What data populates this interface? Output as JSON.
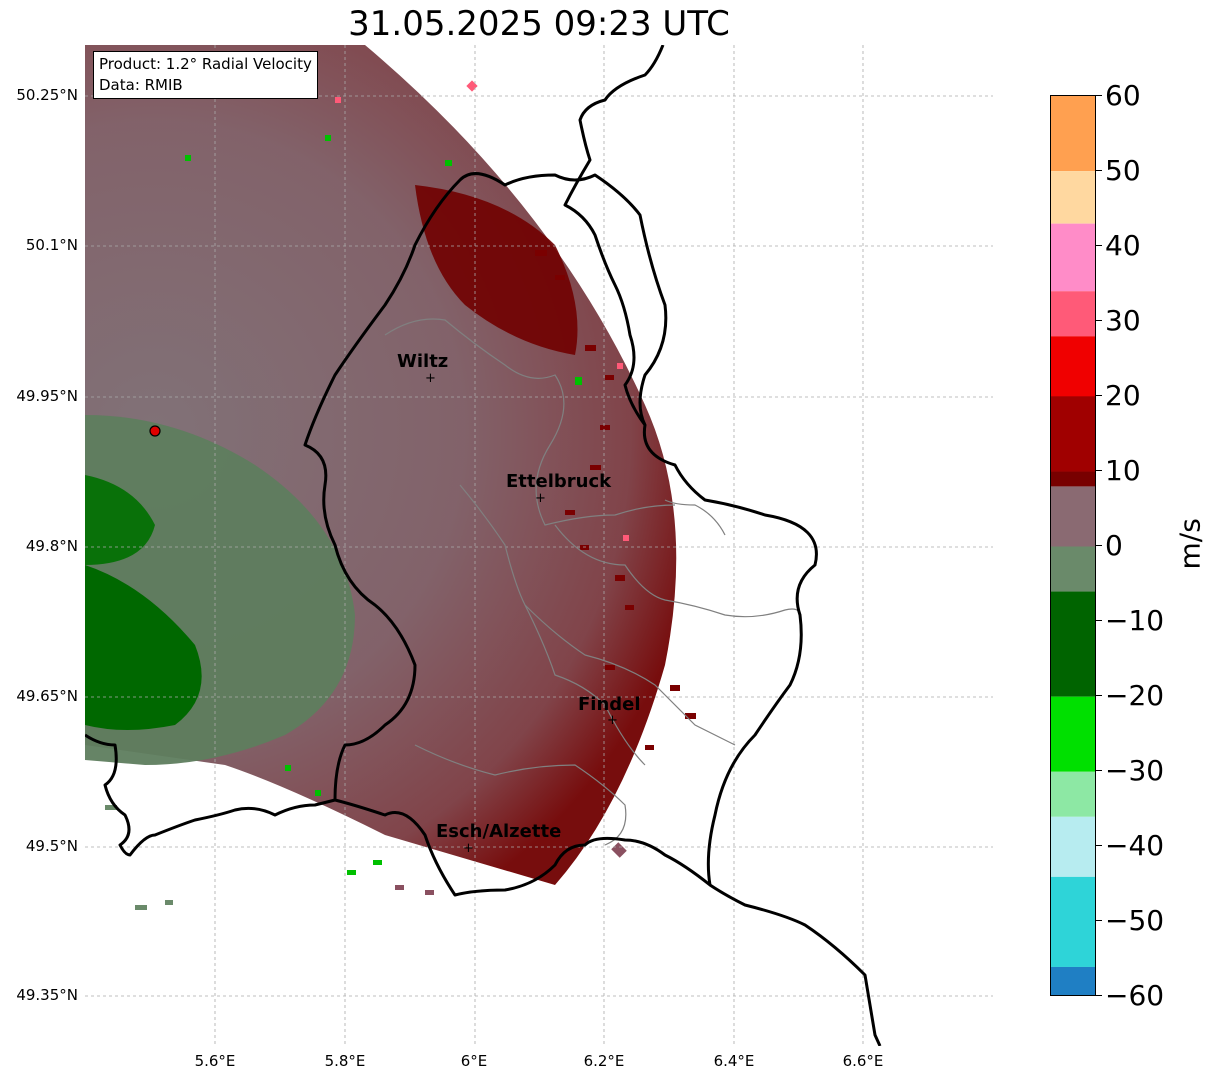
{
  "title": "31.05.2025 09:23 UTC",
  "info_box": {
    "product_line": "Product: 1.2° Radial Velocity",
    "data_line": "Data: RMIB"
  },
  "axes": {
    "lat_labels": [
      "50.25°N",
      "50.1°N",
      "49.95°N",
      "49.8°N",
      "49.65°N",
      "49.5°N",
      "49.35°N"
    ],
    "lon_labels": [
      "5.6°E",
      "5.8°E",
      "6°E",
      "6.2°E",
      "6.4°E",
      "6.6°E"
    ],
    "gridlines": true
  },
  "cities": [
    {
      "name": "Wiltz",
      "label": "Wiltz"
    },
    {
      "name": "Ettelbruck",
      "label": "Ettelbruck"
    },
    {
      "name": "Findel",
      "label": "Findel"
    },
    {
      "name": "Esch/Alzette",
      "label": "Esch/Alzette"
    }
  ],
  "radar_site": {
    "color": "#e00000"
  },
  "colorbar": {
    "unit": "m/s",
    "min": -60,
    "max": 60,
    "tick_labels": [
      "60",
      "50",
      "40",
      "30",
      "20",
      "10",
      "0",
      "−10",
      "−20",
      "−30",
      "−40",
      "−50",
      "−60"
    ],
    "colors": {
      "dark_blue": "#1f7fc4",
      "cyan": "#2ed4d8",
      "light_cyan": "#b7ecf0",
      "light_green": "#8de8a4",
      "bright_green": "#00e000",
      "dark_green": "#006400",
      "gray_green": "#6a8a6a",
      "gray_mauve": "#8a6a72",
      "dark_red": "#780000",
      "red": "#f00000",
      "pink": "#ff5a78",
      "light_pink": "#ff8cc8",
      "peach": "#ffd8a0",
      "orange": "#ffa050"
    }
  }
}
